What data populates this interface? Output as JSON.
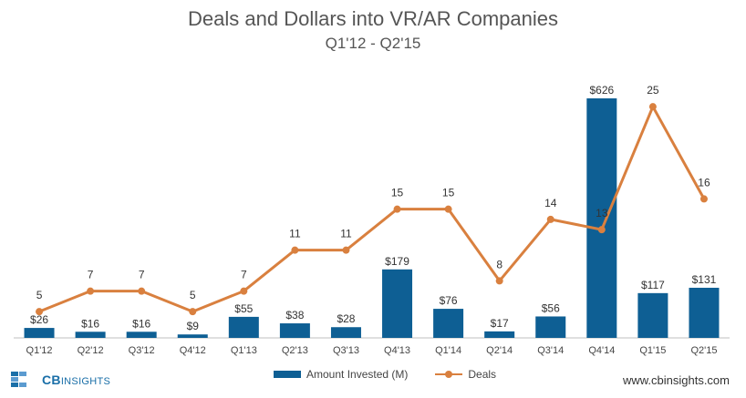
{
  "chart_data": {
    "type": "bar",
    "title": "Deals and Dollars into VR/AR Companies",
    "subtitle": "Q1'12 - Q2'15",
    "categories": [
      "Q1'12",
      "Q2'12",
      "Q3'12",
      "Q4'12",
      "Q1'13",
      "Q2'13",
      "Q3'13",
      "Q4'13",
      "Q1'14",
      "Q2'14",
      "Q3'14",
      "Q4'14",
      "Q1'15",
      "Q2'15"
    ],
    "series": [
      {
        "name": "Amount Invested (M)",
        "type": "bar",
        "color": "#0e5f94",
        "values": [
          26,
          16,
          16,
          9,
          55,
          38,
          28,
          179,
          76,
          17,
          56,
          626,
          117,
          131
        ],
        "labels": [
          "$26",
          "$16",
          "$16",
          "$9",
          "$55",
          "$38",
          "$28",
          "$179",
          "$76",
          "$17",
          "$56",
          "$626",
          "$117",
          "$131"
        ]
      },
      {
        "name": "Deals",
        "type": "line",
        "color": "#d9803f",
        "values": [
          5,
          7,
          7,
          5,
          7,
          11,
          11,
          15,
          15,
          8,
          14,
          13,
          25,
          16
        ],
        "labels": [
          "5",
          "7",
          "7",
          "5",
          "7",
          "11",
          "11",
          "15",
          "15",
          "8",
          "14",
          "13",
          "25",
          "16"
        ]
      }
    ],
    "legend_position": "bottom-center",
    "grid": false
  },
  "legend": {
    "bar_label": "Amount Invested (M)",
    "line_label": "Deals"
  },
  "footer": {
    "logo_text_bold": "CB",
    "logo_text": "INSIGHTS",
    "website": "www.cbinsights.com"
  }
}
